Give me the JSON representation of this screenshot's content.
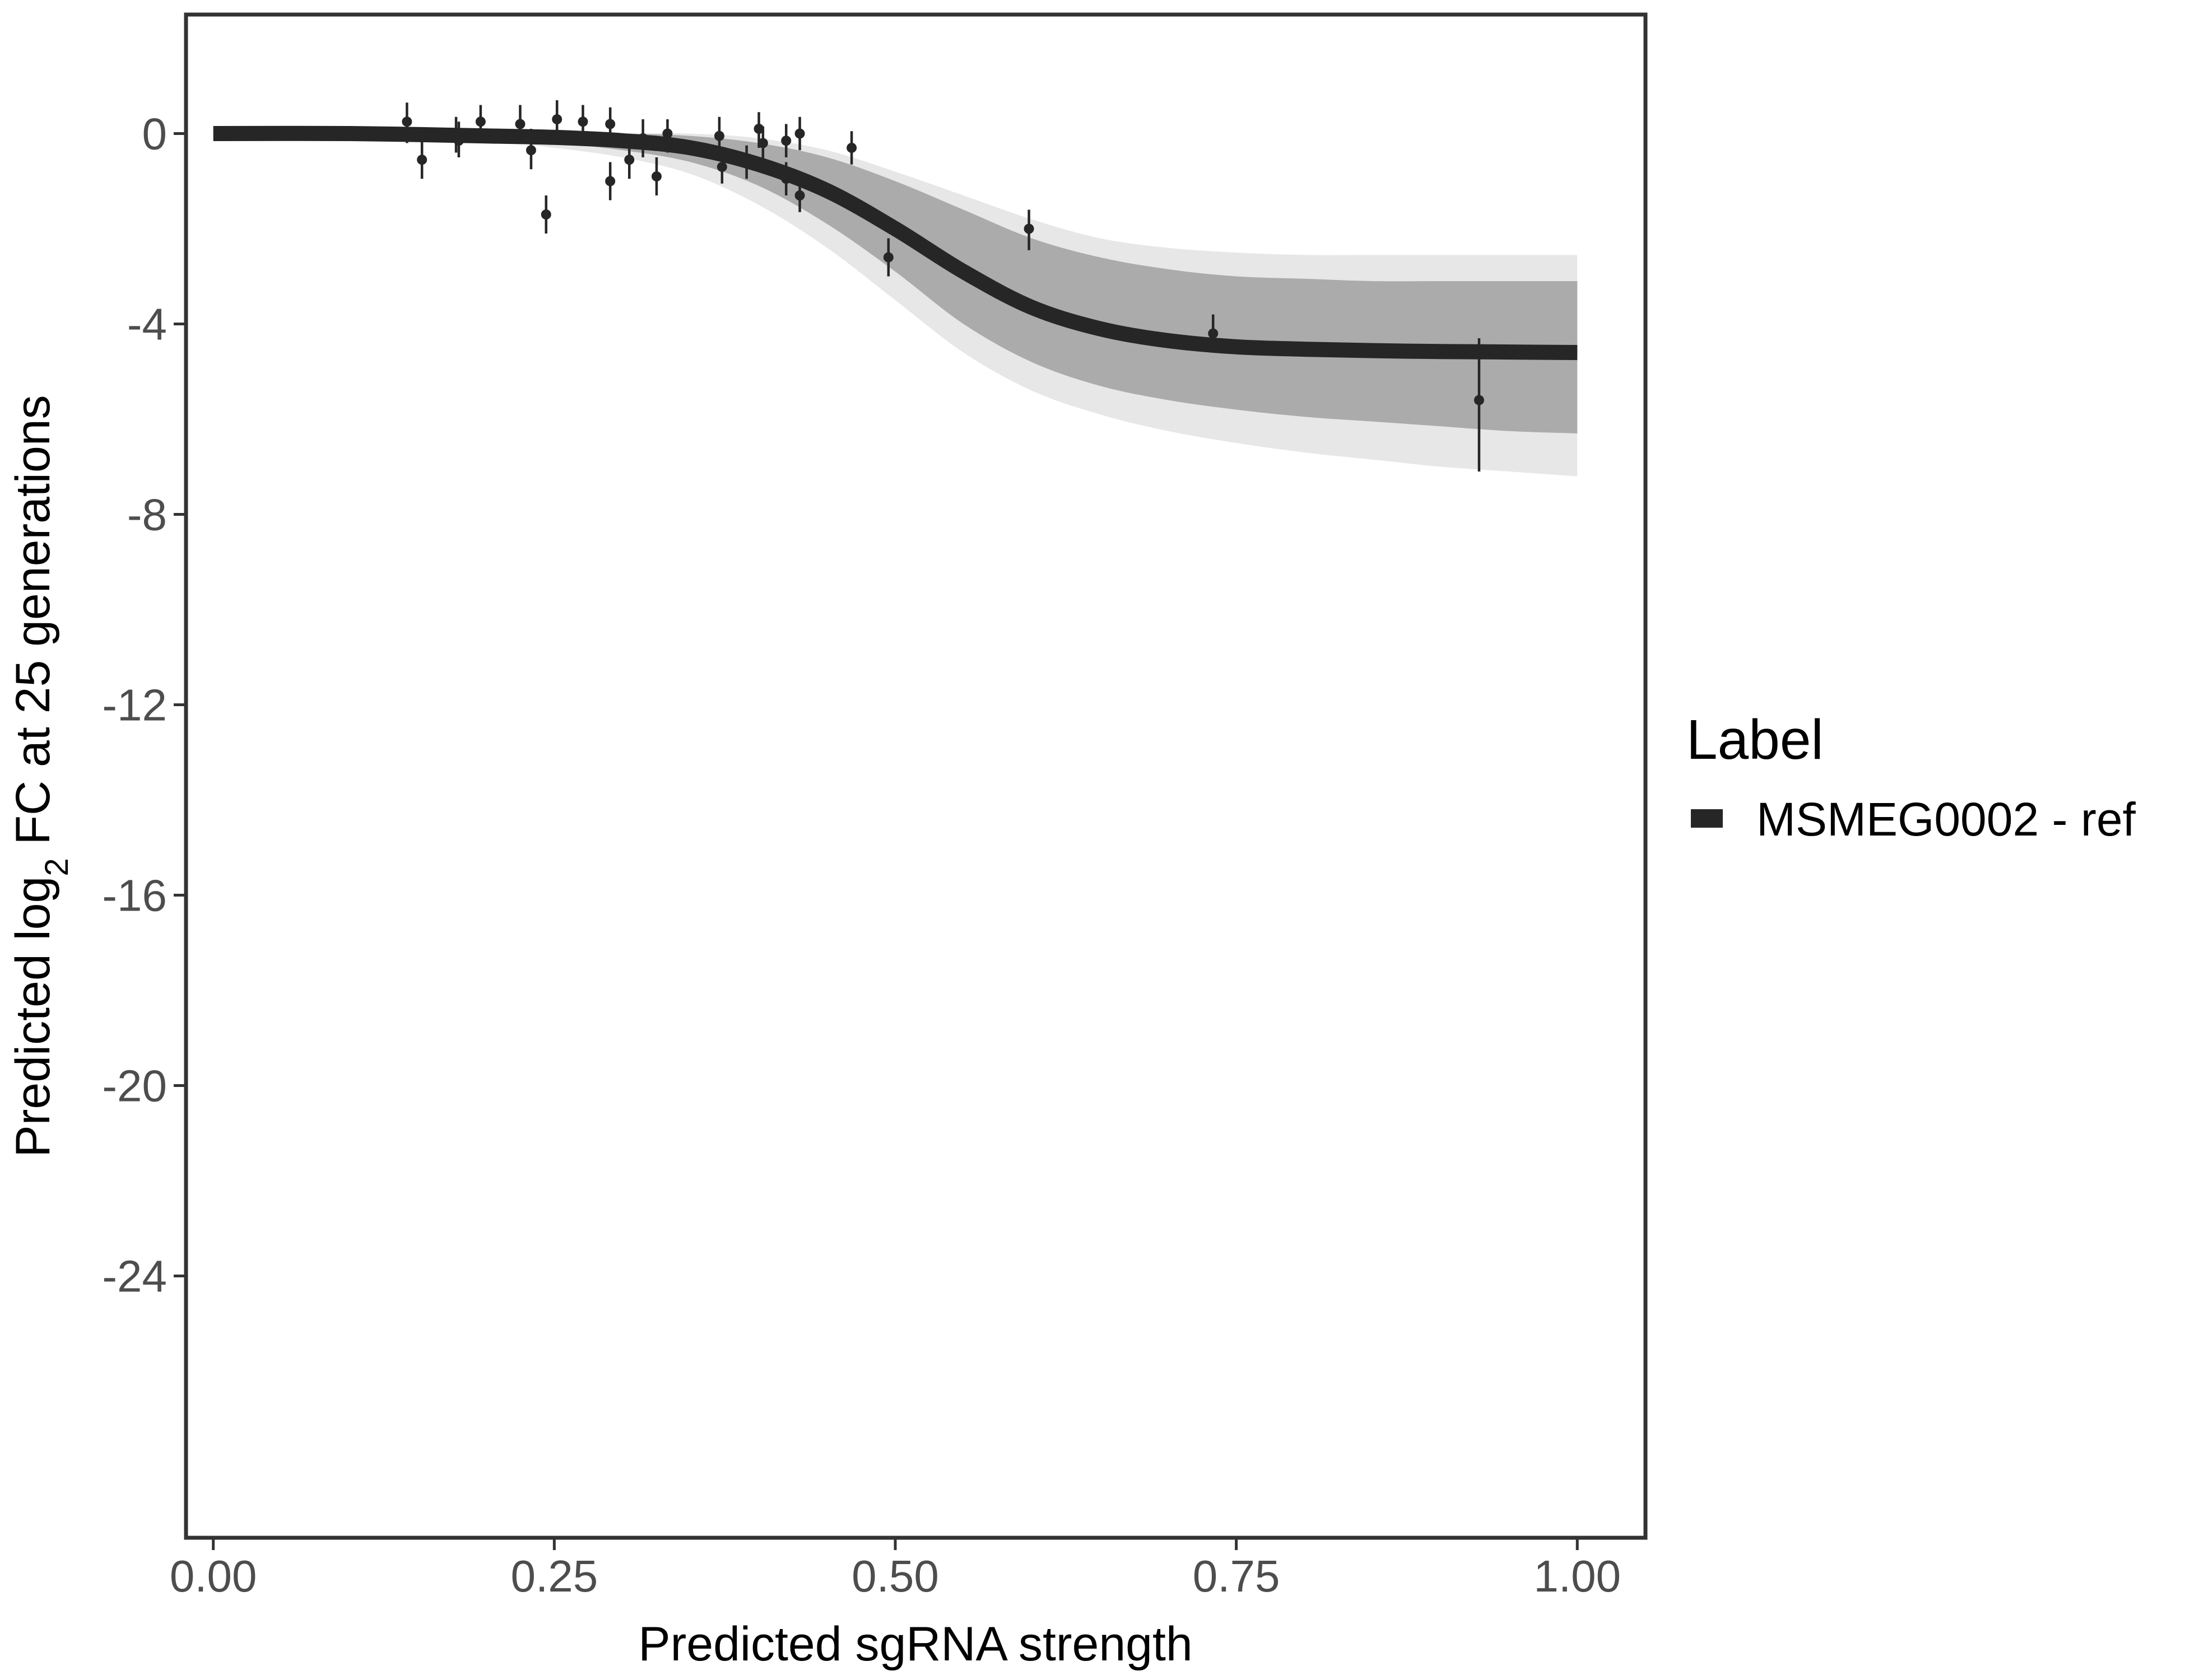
{
  "chart_data": {
    "type": "line",
    "title": "",
    "xlabel": "Predicted sgRNA strength",
    "ylabel_prefix": "Predicted  log",
    "ylabel_subscript": "2",
    "ylabel_suffix": " FC at 25 generations",
    "xlim": [
      -0.02,
      1.05
    ],
    "ylim": [
      -29.5,
      2.5
    ],
    "x_ticks": [
      {
        "value": 0.0,
        "label": "0.00"
      },
      {
        "value": 0.25,
        "label": "0.25"
      },
      {
        "value": 0.5,
        "label": "0.50"
      },
      {
        "value": 0.75,
        "label": "0.75"
      },
      {
        "value": 1.0,
        "label": "1.00"
      }
    ],
    "y_ticks": [
      {
        "value": 0,
        "label": "0"
      },
      {
        "value": -4,
        "label": "-4"
      },
      {
        "value": -8,
        "label": "-8"
      },
      {
        "value": -12,
        "label": "-12"
      },
      {
        "value": -16,
        "label": "-16"
      },
      {
        "value": -20,
        "label": "-20"
      },
      {
        "value": -24,
        "label": "-24"
      }
    ],
    "grid": false,
    "legend": {
      "title": "Label",
      "placement": "right",
      "entries": [
        {
          "name": "MSMEG0002 - ref",
          "color": "#262626"
        }
      ]
    },
    "fit_curve": {
      "name": "MSMEG0002 - ref",
      "color": "#262626",
      "x": [
        0.0,
        0.1,
        0.2,
        0.25,
        0.3,
        0.35,
        0.4,
        0.45,
        0.5,
        0.55,
        0.6,
        0.65,
        0.7,
        0.75,
        0.8,
        0.85,
        0.9,
        0.95,
        1.0
      ],
      "y": [
        0.0,
        0.0,
        -0.05,
        -0.08,
        -0.15,
        -0.3,
        -0.65,
        -1.2,
        -2.0,
        -2.9,
        -3.65,
        -4.1,
        -4.35,
        -4.48,
        -4.53,
        -4.56,
        -4.58,
        -4.59,
        -4.6
      ]
    },
    "posterior_band": {
      "color": "#a8a8a8",
      "x": [
        0.0,
        0.1,
        0.2,
        0.25,
        0.3,
        0.35,
        0.4,
        0.45,
        0.5,
        0.55,
        0.6,
        0.65,
        0.7,
        0.75,
        0.8,
        0.85,
        0.9,
        0.95,
        1.0
      ],
      "upper": [
        0.0,
        0.0,
        0.0,
        0.0,
        0.0,
        -0.05,
        -0.2,
        -0.5,
        -1.0,
        -1.6,
        -2.2,
        -2.6,
        -2.85,
        -3.0,
        -3.05,
        -3.1,
        -3.1,
        -3.1,
        -3.1
      ],
      "lower": [
        0.0,
        0.0,
        -0.1,
        -0.2,
        -0.35,
        -0.6,
        -1.1,
        -1.9,
        -2.9,
        -4.0,
        -4.8,
        -5.3,
        -5.6,
        -5.8,
        -5.95,
        -6.05,
        -6.15,
        -6.25,
        -6.3
      ],
      "faint_upper": [
        0.0,
        0.0,
        0.0,
        0.0,
        0.0,
        0.0,
        -0.1,
        -0.35,
        -0.8,
        -1.3,
        -1.8,
        -2.2,
        -2.4,
        -2.5,
        -2.55,
        -2.55,
        -2.55,
        -2.55,
        -2.55
      ],
      "faint_lower": [
        0.0,
        0.0,
        -0.15,
        -0.3,
        -0.5,
        -0.85,
        -1.5,
        -2.4,
        -3.5,
        -4.6,
        -5.4,
        -5.9,
        -6.25,
        -6.5,
        -6.7,
        -6.85,
        -7.0,
        -7.1,
        -7.2
      ]
    },
    "observations": {
      "color": "#262626",
      "points": [
        {
          "x": 0.142,
          "y": 0.25,
          "lo": -0.2,
          "hi": 0.65
        },
        {
          "x": 0.153,
          "y": -0.55,
          "lo": -0.95,
          "hi": -0.15
        },
        {
          "x": 0.178,
          "y": 0.0,
          "lo": -0.4,
          "hi": 0.35
        },
        {
          "x": 0.18,
          "y": -0.15,
          "lo": -0.5,
          "hi": 0.25
        },
        {
          "x": 0.196,
          "y": 0.25,
          "lo": -0.15,
          "hi": 0.6
        },
        {
          "x": 0.225,
          "y": 0.2,
          "lo": -0.2,
          "hi": 0.6
        },
        {
          "x": 0.233,
          "y": -0.35,
          "lo": -0.75,
          "hi": 0.1
        },
        {
          "x": 0.244,
          "y": -1.7,
          "lo": -2.1,
          "hi": -1.3
        },
        {
          "x": 0.252,
          "y": 0.3,
          "lo": -0.15,
          "hi": 0.7
        },
        {
          "x": 0.271,
          "y": 0.25,
          "lo": -0.1,
          "hi": 0.6
        },
        {
          "x": 0.291,
          "y": 0.2,
          "lo": -0.15,
          "hi": 0.55
        },
        {
          "x": 0.291,
          "y": -1.0,
          "lo": -1.4,
          "hi": -0.6
        },
        {
          "x": 0.305,
          "y": -0.55,
          "lo": -0.95,
          "hi": -0.15
        },
        {
          "x": 0.315,
          "y": -0.1,
          "lo": -0.5,
          "hi": 0.3
        },
        {
          "x": 0.325,
          "y": -0.9,
          "lo": -1.3,
          "hi": -0.5
        },
        {
          "x": 0.333,
          "y": 0.0,
          "lo": -0.4,
          "hi": 0.3
        },
        {
          "x": 0.371,
          "y": -0.05,
          "lo": -0.45,
          "hi": 0.35
        },
        {
          "x": 0.373,
          "y": -0.7,
          "lo": -1.05,
          "hi": -0.3
        },
        {
          "x": 0.391,
          "y": -0.6,
          "lo": -0.95,
          "hi": -0.25
        },
        {
          "x": 0.4,
          "y": 0.1,
          "lo": -0.3,
          "hi": 0.45
        },
        {
          "x": 0.403,
          "y": -0.2,
          "lo": -0.55,
          "hi": 0.15
        },
        {
          "x": 0.42,
          "y": -0.15,
          "lo": -0.5,
          "hi": 0.2
        },
        {
          "x": 0.42,
          "y": -0.95,
          "lo": -1.3,
          "hi": -0.6
        },
        {
          "x": 0.43,
          "y": 0.0,
          "lo": -0.35,
          "hi": 0.35
        },
        {
          "x": 0.43,
          "y": -1.3,
          "lo": -1.65,
          "hi": -0.95
        },
        {
          "x": 0.468,
          "y": -0.3,
          "lo": -0.65,
          "hi": 0.05
        },
        {
          "x": 0.495,
          "y": -2.6,
          "lo": -3.0,
          "hi": -2.2
        },
        {
          "x": 0.598,
          "y": -2.0,
          "lo": -2.45,
          "hi": -1.6
        },
        {
          "x": 0.733,
          "y": -4.2,
          "lo": -4.6,
          "hi": -3.8
        },
        {
          "x": 0.928,
          "y": -5.6,
          "lo": -7.1,
          "hi": -4.3
        }
      ]
    }
  }
}
